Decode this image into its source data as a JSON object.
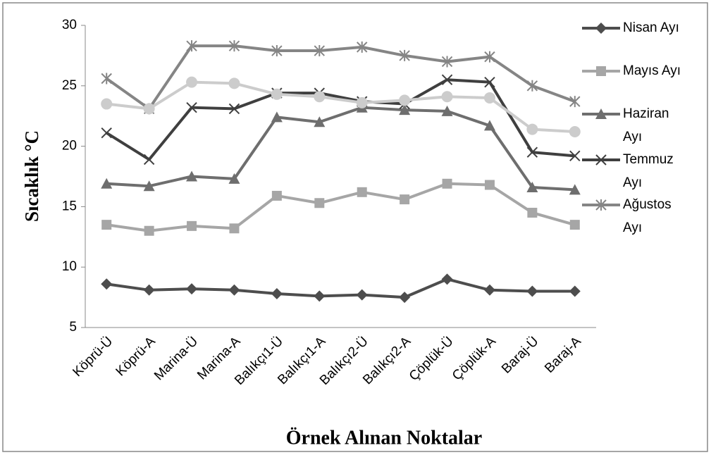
{
  "chart_data": {
    "type": "line",
    "y_label": "Sıcaklık °C",
    "x_label": "Örnek Alınan Noktalar",
    "categories": [
      "Köprü-Ü",
      "Köprü-A",
      "Marina-Ü",
      "Marina-A",
      "Balıkçı1-Ü",
      "Balıkçı1-A",
      "Balıkçı2-Ü",
      "Balıkçı2-A",
      "Çöplük-Ü",
      "Çöplük-A",
      "Baraj-Ü",
      "Baraj-A"
    ],
    "ylim": [
      5,
      30
    ],
    "yticks": [
      5,
      10,
      15,
      20,
      25,
      30
    ],
    "series": [
      {
        "name": "Nisan Ayı",
        "color": "#4d4d4d",
        "marker": "diamond",
        "values": [
          8.6,
          8.1,
          8.2,
          8.1,
          7.8,
          7.6,
          7.7,
          7.5,
          9.0,
          8.1,
          8.0,
          8.0
        ]
      },
      {
        "name": "Mayıs Ayı",
        "color": "#a6a6a6",
        "marker": "square",
        "values": [
          13.5,
          13.0,
          13.4,
          13.2,
          15.9,
          15.3,
          16.2,
          15.6,
          16.9,
          16.8,
          14.5,
          13.5
        ]
      },
      {
        "name": "Haziran Ayı",
        "color": "#6e6e6e",
        "marker": "triangle",
        "values": [
          16.9,
          16.7,
          17.5,
          17.3,
          22.4,
          22.0,
          23.2,
          23.0,
          22.9,
          21.7,
          16.6,
          16.4
        ]
      },
      {
        "name": "Temmuz Ayı",
        "color": "#3f3f3f",
        "marker": "x",
        "values": [
          21.1,
          18.9,
          23.2,
          23.1,
          24.4,
          24.4,
          23.7,
          23.5,
          25.5,
          25.3,
          19.5,
          19.2
        ]
      },
      {
        "name": "Ağustos Ayı",
        "color": "#858585",
        "marker": "asterisk",
        "values": [
          25.6,
          23.1,
          28.3,
          28.3,
          27.9,
          27.9,
          28.2,
          27.5,
          27.0,
          27.4,
          25.0,
          23.7
        ]
      },
      {
        "color": "#cccccc",
        "marker": "circle",
        "values": [
          23.5,
          23.1,
          25.3,
          25.2,
          24.3,
          24.1,
          23.6,
          23.8,
          24.1,
          24.0,
          21.4,
          21.2
        ]
      }
    ]
  }
}
